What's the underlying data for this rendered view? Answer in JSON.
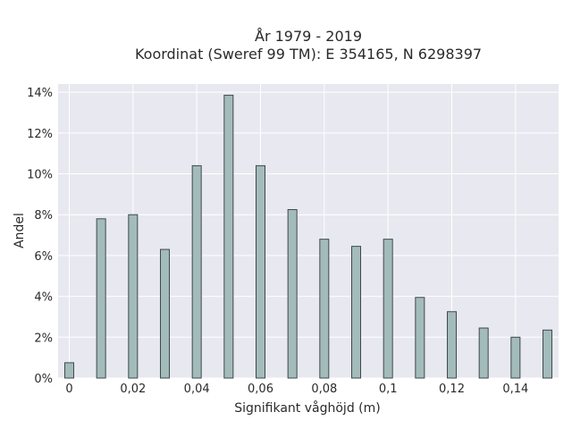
{
  "chart_data": {
    "type": "bar",
    "title_line1": "År 1979 - 2019",
    "title_line2": "Koordinat (Sweref 99 TM): E 354165, N 6298397",
    "xlabel": "Signifikant våghöjd (m)",
    "ylabel": "Andel",
    "x": [
      0,
      0.01,
      0.02,
      0.03,
      0.04,
      0.05,
      0.06,
      0.07,
      0.08,
      0.09,
      0.1,
      0.11,
      0.12,
      0.13,
      0.14,
      0.15
    ],
    "values": [
      0.75,
      7.8,
      8.0,
      6.3,
      10.4,
      13.85,
      10.4,
      8.25,
      6.8,
      6.45,
      6.8,
      3.95,
      3.25,
      2.45,
      2.0,
      2.35
    ],
    "xlim": [
      -0.0035,
      0.1535
    ],
    "ylim": [
      0,
      14.4
    ],
    "x_ticks": [
      0,
      0.02,
      0.04,
      0.06,
      0.08,
      0.1,
      0.12,
      0.14
    ],
    "x_tick_labels": [
      "0",
      "0,02",
      "0,04",
      "0,06",
      "0,08",
      "0,1",
      "0,12",
      "0,14"
    ],
    "y_ticks": [
      0,
      2,
      4,
      6,
      8,
      10,
      12,
      14
    ],
    "y_tick_labels": [
      "0%",
      "2%",
      "4%",
      "6%",
      "8%",
      "10%",
      "12%",
      "14%"
    ],
    "grid": true,
    "colors": {
      "bar_fill": "#a3bbbb",
      "bar_edge": "#3e4a48",
      "plot_bg": "#e8e8f0",
      "grid": "#ffffff"
    }
  }
}
